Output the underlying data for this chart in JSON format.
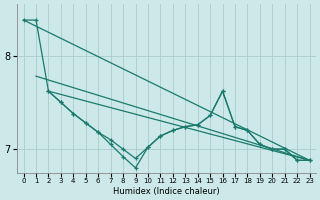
{
  "xlabel": "Humidex (Indice chaleur)",
  "bg_color": "#cce8e8",
  "line_color": "#1a7a6e",
  "grid_color": "#aacccc",
  "xlim": [
    -0.5,
    23.5
  ],
  "ylim": [
    6.75,
    8.55
  ],
  "yticks": [
    7,
    8
  ],
  "xticks": [
    0,
    1,
    2,
    3,
    4,
    5,
    6,
    7,
    8,
    9,
    10,
    11,
    12,
    13,
    14,
    15,
    16,
    17,
    18,
    19,
    20,
    21,
    22,
    23
  ],
  "trend1_x": [
    0,
    23
  ],
  "trend1_y": [
    8.38,
    6.88
  ],
  "trend2_x": [
    1,
    23
  ],
  "trend2_y": [
    7.78,
    6.88
  ],
  "trend3_x": [
    2,
    23
  ],
  "trend3_y": [
    7.62,
    6.88
  ],
  "zigzag1_x": [
    0,
    1,
    2,
    3,
    4,
    5,
    6,
    7,
    8,
    9,
    10,
    11,
    12,
    13,
    14,
    15,
    16,
    17,
    18,
    19,
    20,
    21,
    22,
    23
  ],
  "zigzag1_y": [
    8.38,
    8.38,
    7.62,
    7.5,
    7.38,
    7.28,
    7.18,
    7.05,
    6.92,
    6.8,
    7.02,
    7.14,
    7.2,
    7.24,
    7.26,
    7.36,
    7.62,
    7.24,
    7.2,
    7.05,
    7.0,
    7.0,
    6.88,
    6.88
  ],
  "zigzag2_x": [
    2,
    3,
    4,
    5,
    6,
    7,
    8,
    9,
    10,
    11,
    12,
    13,
    14,
    15,
    16,
    17,
    18,
    19,
    20,
    21,
    22,
    23
  ],
  "zigzag2_y": [
    7.62,
    7.5,
    7.38,
    7.28,
    7.18,
    7.1,
    7.0,
    6.9,
    7.02,
    7.14,
    7.2,
    7.24,
    7.26,
    7.36,
    7.62,
    7.24,
    7.2,
    7.05,
    7.0,
    7.0,
    6.88,
    6.88
  ],
  "xlabel_fontsize": 6,
  "tick_fontsize_x": 5,
  "tick_fontsize_y": 7
}
